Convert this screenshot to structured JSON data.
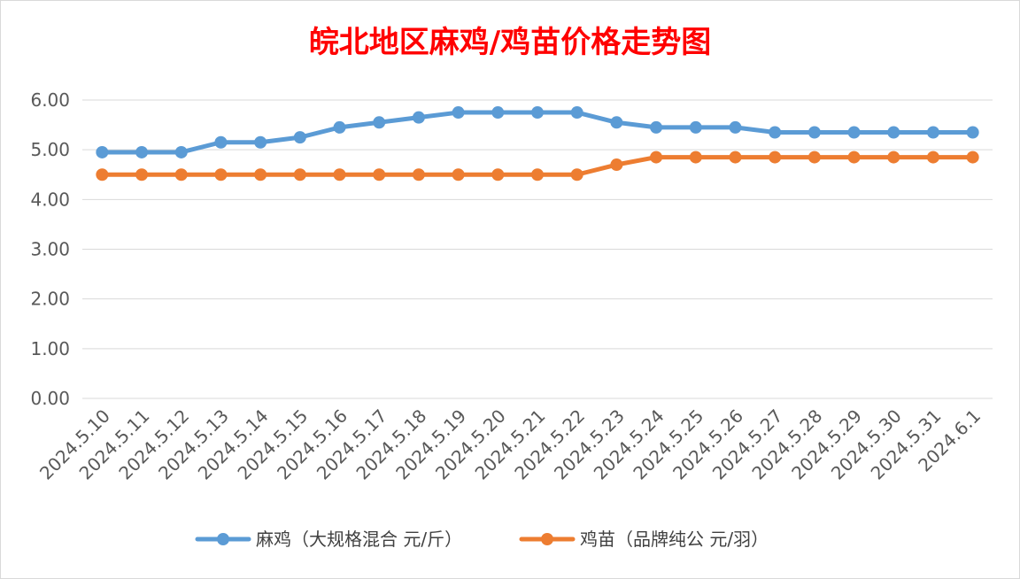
{
  "chart_data": {
    "type": "line",
    "title": "皖北地区麻鸡/鸡苗价格走势图",
    "categories": [
      "2024.5.10",
      "2024.5.11",
      "2024.5.12",
      "2024.5.13",
      "2024.5.14",
      "2024.5.15",
      "2024.5.16",
      "2024.5.17",
      "2024.5.18",
      "2024.5.19",
      "2024.5.20",
      "2024.5.21",
      "2024.5.22",
      "2024.5.23",
      "2024.5.24",
      "2024.5.25",
      "2024.5.26",
      "2024.5.27",
      "2024.5.28",
      "2024.5.29",
      "2024.5.30",
      "2024.5.31",
      "2024.6.1"
    ],
    "series": [
      {
        "name": "麻鸡（大规格混合 元/斤）",
        "color": "#5b9bd5",
        "values": [
          4.95,
          4.95,
          4.95,
          5.15,
          5.15,
          5.25,
          5.45,
          5.55,
          5.65,
          5.75,
          5.75,
          5.75,
          5.75,
          5.55,
          5.45,
          5.45,
          5.45,
          5.35,
          5.35,
          5.35,
          5.35,
          5.35,
          5.35
        ]
      },
      {
        "name": "鸡苗（品牌纯公 元/羽）",
        "color": "#ed7d31",
        "values": [
          4.5,
          4.5,
          4.5,
          4.5,
          4.5,
          4.5,
          4.5,
          4.5,
          4.5,
          4.5,
          4.5,
          4.5,
          4.5,
          4.7,
          4.85,
          4.85,
          4.85,
          4.85,
          4.85,
          4.85,
          4.85,
          4.85,
          4.85
        ]
      }
    ],
    "yticks": [
      "0.00",
      "1.00",
      "2.00",
      "3.00",
      "4.00",
      "5.00",
      "6.00"
    ],
    "ylim": [
      0,
      6
    ],
    "grid": true,
    "legend": "bottom",
    "colors": {
      "title": "#ff0000",
      "grid": "#d9d9d9",
      "text": "#595959"
    }
  }
}
